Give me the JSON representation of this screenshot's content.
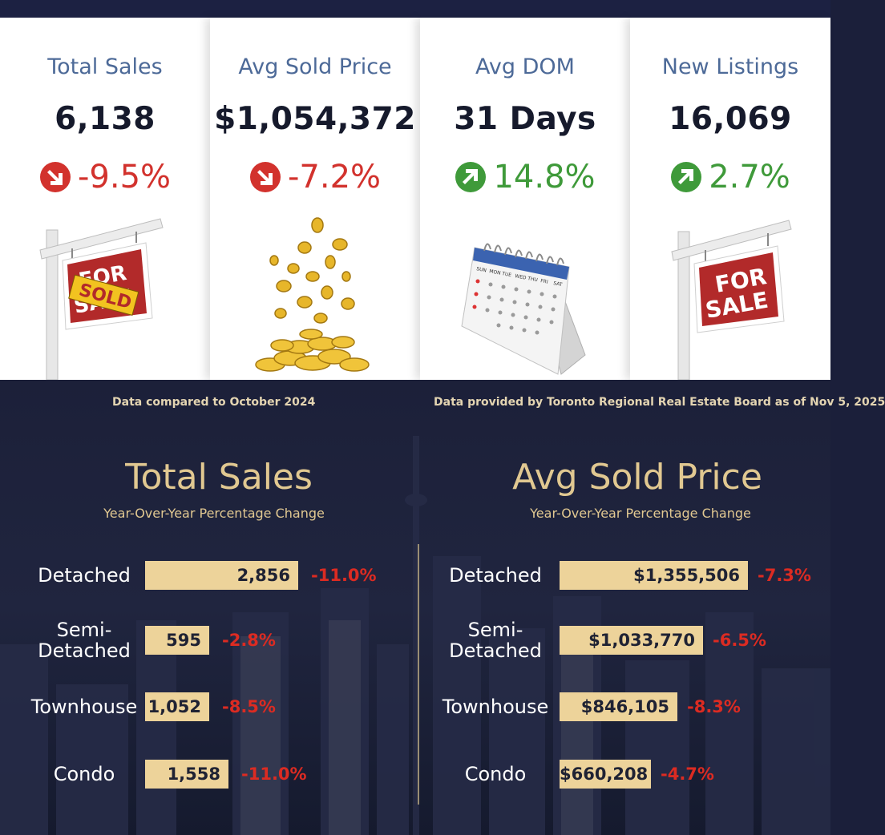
{
  "cards": [
    {
      "label": "Total Sales",
      "value": "6,138",
      "change": "-9.5%",
      "direction": "down",
      "icon": "for-sale-sold-sign-icon"
    },
    {
      "label": "Avg Sold Price",
      "value": "$1,054,372",
      "change": "-7.2%",
      "direction": "down",
      "icon": "gold-coins-icon"
    },
    {
      "label": "Avg DOM",
      "value": "31 Days",
      "change": "14.8%",
      "direction": "up",
      "icon": "calendar-icon"
    },
    {
      "label": "New Listings",
      "value": "16,069",
      "change": "2.7%",
      "direction": "up",
      "icon": "for-sale-sign-icon"
    }
  ],
  "sign_text": {
    "for_sale_1": "FOR",
    "for_sale_2": "SALE",
    "sold": "SOLD"
  },
  "calendar_days": [
    "SUN",
    "MON",
    "TUE",
    "WED",
    "THU",
    "FRI",
    "SAT"
  ],
  "notes": {
    "left": "Data compared to October 2024",
    "right": "Data provided by Toronto Regional Real Estate Board as of  Nov  5, 2025"
  },
  "colors": {
    "card_label": "#4d6a98",
    "down": "#d2322d",
    "up": "#3f9a3a",
    "gold": "#e1c891",
    "bar": "#edd39a",
    "negative_pct": "#dc2b22",
    "navy": "#1b1f3a"
  },
  "chart_data": [
    {
      "type": "bar",
      "title": "Total Sales",
      "subtitle": "Year-Over-Year Percentage Change",
      "categories": [
        "Detached",
        "Semi-\nDetached",
        "Townhouse",
        "Condo"
      ],
      "values": [
        2856,
        595,
        1052,
        1558
      ],
      "value_labels": [
        "2,856",
        "595",
        "1,052",
        "1,558"
      ],
      "changes": [
        "-11.0%",
        "-2.8%",
        "-8.5%",
        "-11.0%"
      ],
      "xlim": [
        0,
        2856
      ]
    },
    {
      "type": "bar",
      "title": "Avg Sold Price",
      "subtitle": "Year-Over-Year Percentage Change",
      "categories": [
        "Detached",
        "Semi-\nDetached",
        "Townhouse",
        "Condo"
      ],
      "values": [
        1355506,
        1033770,
        846105,
        660208
      ],
      "value_labels": [
        "$1,355,506",
        "$1,033,770",
        "$846,105",
        "$660,208"
      ],
      "changes": [
        "-7.3%",
        "-6.5%",
        "-8.3%",
        "-4.7%"
      ],
      "xlim": [
        0,
        1355506
      ]
    }
  ]
}
